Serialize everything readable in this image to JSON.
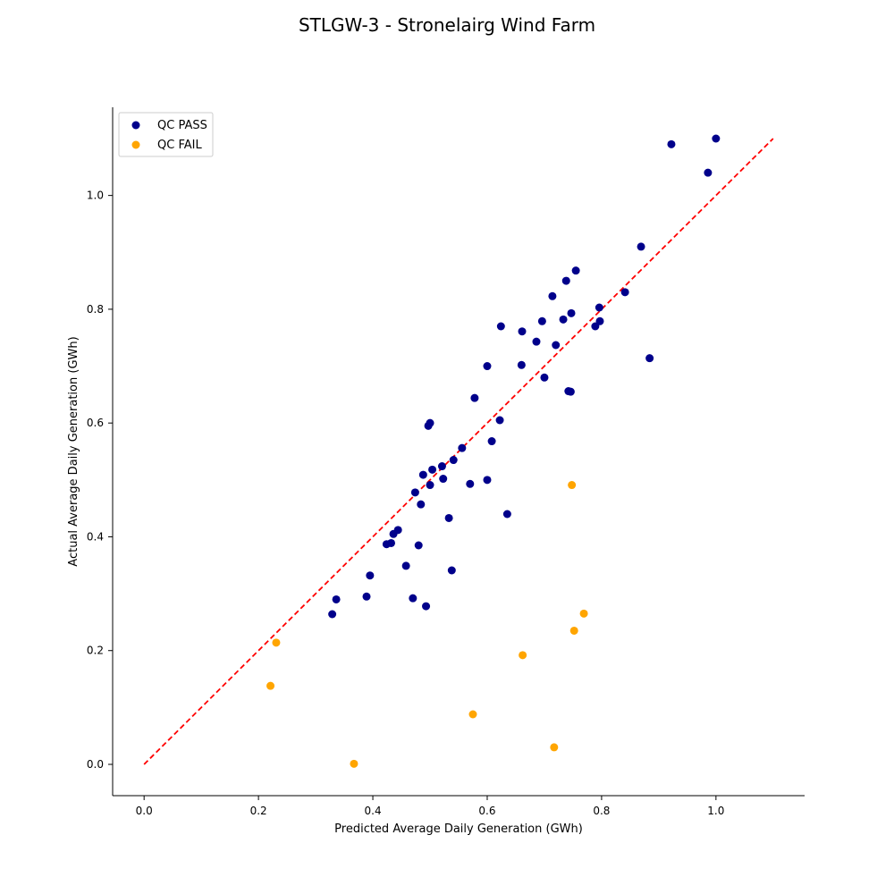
{
  "chart_data": {
    "type": "scatter",
    "title": "STLGW-3 - Stronelairg Wind Farm",
    "xlabel": "Predicted Average Daily Generation (GWh)",
    "ylabel": "Actual Average Daily Generation (GWh)",
    "xlim": [
      -0.055,
      1.155
    ],
    "ylim": [
      -0.055,
      1.155
    ],
    "xticks": [
      "0.0",
      "0.2",
      "0.4",
      "0.6",
      "0.8",
      "1.0"
    ],
    "yticks": [
      "0.0",
      "0.2",
      "0.4",
      "0.6",
      "0.8",
      "1.0"
    ],
    "grid": false,
    "legend_position": "top-left",
    "reference_line": {
      "style": "dashed",
      "color": "#ff0000",
      "points": [
        [
          0.0,
          0.0
        ],
        [
          1.1,
          1.1
        ]
      ]
    },
    "series": [
      {
        "name": "QC PASS",
        "color": "#00008b",
        "points": [
          [
            1.0,
            1.1
          ],
          [
            0.922,
            1.09
          ],
          [
            0.986,
            1.04
          ],
          [
            0.869,
            0.91
          ],
          [
            0.755,
            0.868
          ],
          [
            0.738,
            0.85
          ],
          [
            0.841,
            0.83
          ],
          [
            0.714,
            0.823
          ],
          [
            0.796,
            0.803
          ],
          [
            0.747,
            0.793
          ],
          [
            0.733,
            0.782
          ],
          [
            0.797,
            0.779
          ],
          [
            0.696,
            0.779
          ],
          [
            0.789,
            0.77
          ],
          [
            0.624,
            0.77
          ],
          [
            0.661,
            0.761
          ],
          [
            0.686,
            0.743
          ],
          [
            0.72,
            0.737
          ],
          [
            0.884,
            0.714
          ],
          [
            0.6,
            0.7
          ],
          [
            0.66,
            0.702
          ],
          [
            0.7,
            0.68
          ],
          [
            0.742,
            0.656
          ],
          [
            0.746,
            0.655
          ],
          [
            0.578,
            0.644
          ],
          [
            0.622,
            0.605
          ],
          [
            0.5,
            0.6
          ],
          [
            0.497,
            0.595
          ],
          [
            0.608,
            0.568
          ],
          [
            0.556,
            0.556
          ],
          [
            0.541,
            0.535
          ],
          [
            0.521,
            0.524
          ],
          [
            0.504,
            0.518
          ],
          [
            0.488,
            0.509
          ],
          [
            0.523,
            0.502
          ],
          [
            0.6,
            0.5
          ],
          [
            0.5,
            0.491
          ],
          [
            0.57,
            0.493
          ],
          [
            0.474,
            0.478
          ],
          [
            0.484,
            0.457
          ],
          [
            0.635,
            0.44
          ],
          [
            0.533,
            0.433
          ],
          [
            0.444,
            0.412
          ],
          [
            0.436,
            0.405
          ],
          [
            0.432,
            0.389
          ],
          [
            0.424,
            0.387
          ],
          [
            0.48,
            0.385
          ],
          [
            0.458,
            0.349
          ],
          [
            0.538,
            0.341
          ],
          [
            0.395,
            0.332
          ],
          [
            0.389,
            0.295
          ],
          [
            0.47,
            0.292
          ],
          [
            0.336,
            0.29
          ],
          [
            0.493,
            0.278
          ],
          [
            0.329,
            0.264
          ]
        ]
      },
      {
        "name": "QC FAIL",
        "color": "#ffa500",
        "points": [
          [
            0.748,
            0.491
          ],
          [
            0.769,
            0.265
          ],
          [
            0.752,
            0.235
          ],
          [
            0.231,
            0.214
          ],
          [
            0.662,
            0.192
          ],
          [
            0.221,
            0.138
          ],
          [
            0.575,
            0.088
          ],
          [
            0.717,
            0.03
          ],
          [
            0.367,
            0.001
          ]
        ]
      }
    ]
  }
}
